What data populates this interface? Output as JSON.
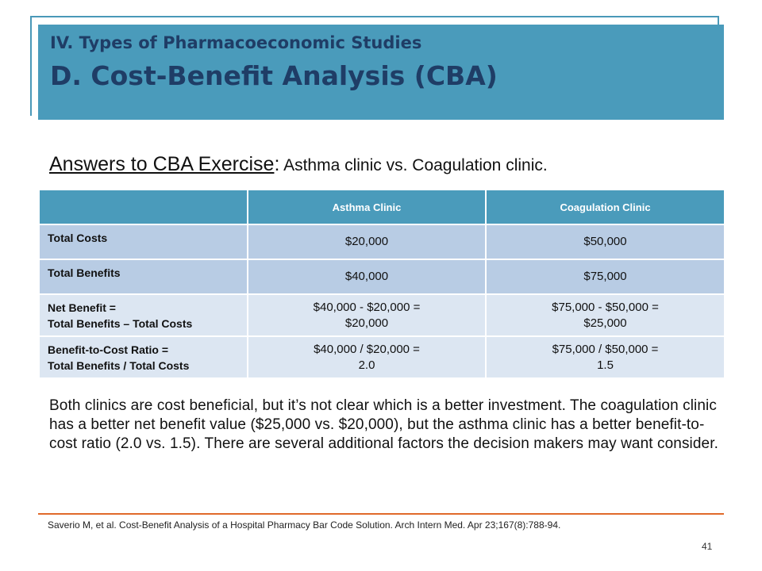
{
  "header": {
    "line1": "IV. Types of Pharmacoeconomic Studies",
    "line2": "D. Cost-Benefit Analysis (CBA)"
  },
  "subtitle": {
    "underlined": "Answers to CBA Exercise",
    "colon": ":",
    "rest": " Asthma clinic vs. Coagulation clinic."
  },
  "table": {
    "headers": [
      "",
      "Asthma Clinic",
      "Coagulation Clinic"
    ],
    "rows": [
      {
        "label": [
          "Total Costs"
        ],
        "asthma": [
          "$20,000"
        ],
        "coag": [
          "$50,000"
        ]
      },
      {
        "label": [
          "Total Benefits"
        ],
        "asthma": [
          "$40,000"
        ],
        "coag": [
          "$75,000"
        ]
      },
      {
        "label": [
          "Net Benefit =",
          "Total Benefits – Total Costs"
        ],
        "asthma": [
          "$40,000 - $20,000 =",
          "$20,000"
        ],
        "coag": [
          "$75,000 - $50,000 =",
          "$25,000"
        ]
      },
      {
        "label": [
          "Benefit-to-Cost Ratio =",
          "Total Benefits / Total Costs"
        ],
        "asthma": [
          "$40,000 / $20,000 =",
          "2.0"
        ],
        "coag": [
          "$75,000 / $50,000 =",
          "1.5"
        ]
      }
    ]
  },
  "paragraph": "Both clinics are cost beneficial, but it’s not clear which is a better investment. The coagulation clinic has a better net benefit value ($25,000 vs. $20,000), but the asthma clinic has a better benefit-to-cost ratio (2.0 vs. 1.5).  There are several additional factors the decision makers may want consider.",
  "citation": "Saverio M, et al. Cost-Benefit Analysis of a Hospital Pharmacy Bar Code Solution.  Arch Intern Med. Apr 23;167(8):788-94.",
  "page_number": "41",
  "colors": {
    "header_bg": "#4a9bbb",
    "title_text": "#1f3d66",
    "row_dark": "#b8cce4",
    "row_light": "#dce6f2",
    "footer_rule": "#e06a2a"
  }
}
